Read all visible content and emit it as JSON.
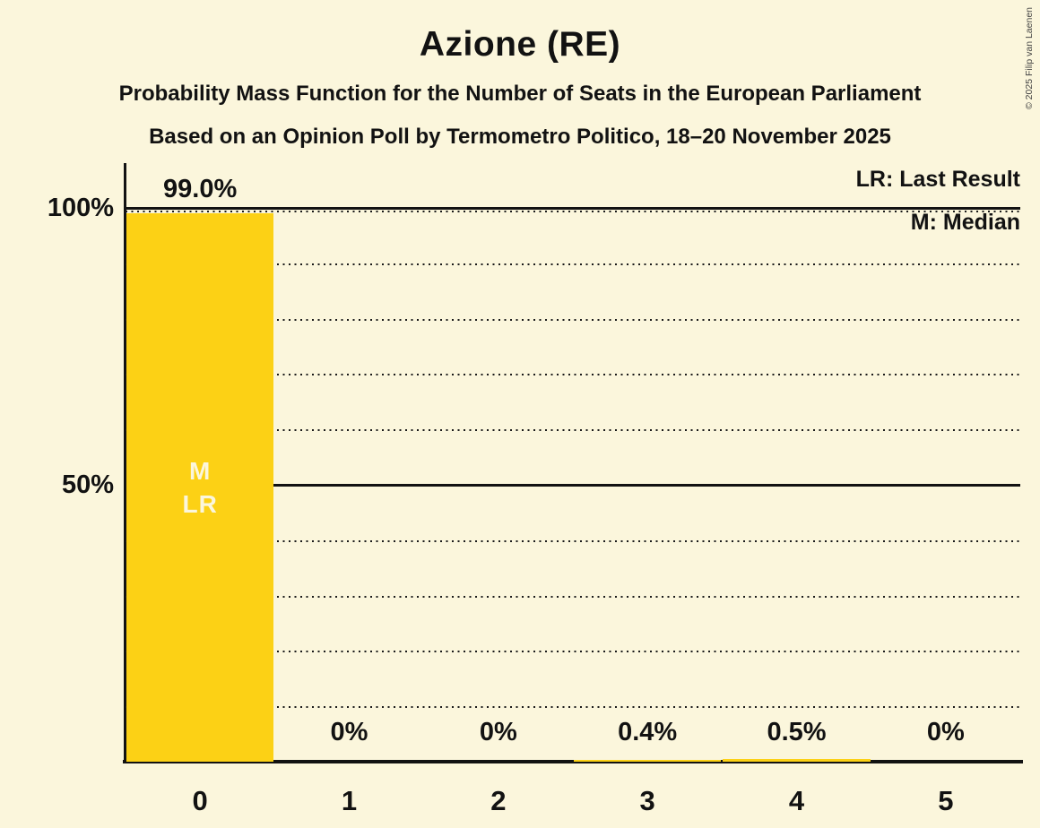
{
  "header": {
    "title": "Azione (RE)",
    "subtitle_line1": "Probability Mass Function for the Number of Seats in the European Parliament",
    "subtitle_line2": "Based on an Opinion Poll by Termometro Politico, 18–20 November 2025"
  },
  "copyright": "© 2025 Filip van Laenen",
  "legend": {
    "lr": "LR: Last Result",
    "m": "M: Median"
  },
  "chart_data": {
    "type": "bar",
    "title": "Azione (RE)",
    "xlabel": "",
    "ylabel": "",
    "categories": [
      "0",
      "1",
      "2",
      "3",
      "4",
      "5"
    ],
    "values": [
      99.0,
      0,
      0,
      0.4,
      0.5,
      0
    ],
    "value_labels": [
      "99.0%",
      "0%",
      "0%",
      "0.4%",
      "0.5%",
      "0%"
    ],
    "bar_annotations": [
      [
        "M",
        "LR"
      ],
      [],
      [],
      [],
      [],
      []
    ],
    "median_marker": "M",
    "last_result_marker": "LR",
    "ylim": [
      0,
      100
    ],
    "ytick_labels": [
      {
        "value": 100,
        "label": "100%"
      },
      {
        "value": 50,
        "label": "50%"
      }
    ],
    "solid_gridlines": [
      50,
      100
    ],
    "dotted_gridlines": [
      10,
      20,
      30,
      40,
      60,
      70,
      80,
      90,
      100
    ],
    "legend_position": "top-right",
    "grid": "horizontal-dotted",
    "colors": {
      "background": "#FBF6DC",
      "bar": "#FCD115",
      "text": "#121212",
      "annotation_text": "#FBF6DC"
    }
  }
}
